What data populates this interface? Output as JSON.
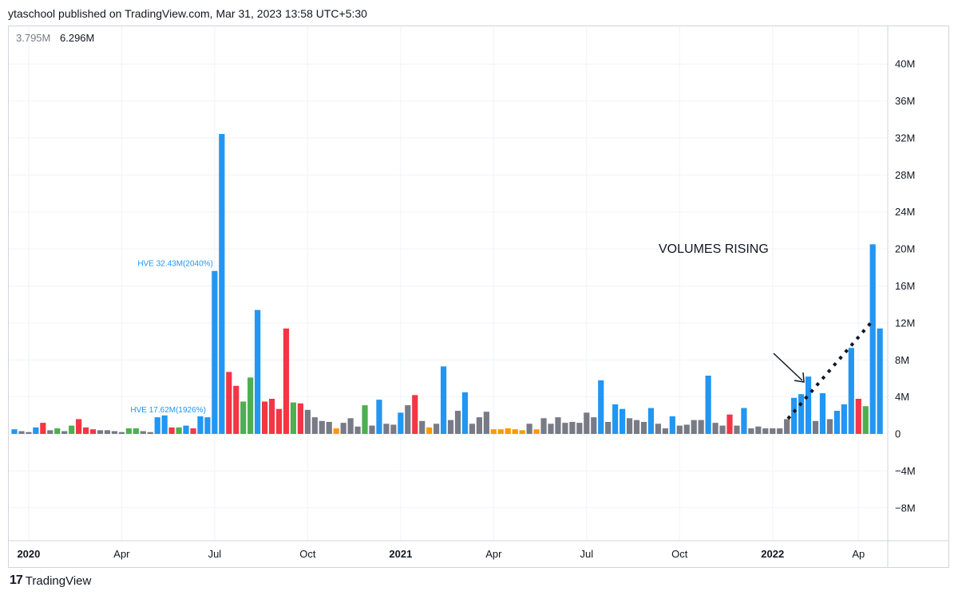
{
  "header": {
    "title": "ytaschool published on TradingView.com, Mar 31, 2023 13:58 UTC+5:30"
  },
  "legend": {
    "value_1": "3.795M",
    "value_2": "6.296M"
  },
  "annotation": {
    "text": "VOLUMES RISING"
  },
  "footer": {
    "brand": "TradingView",
    "logo": "17"
  },
  "colors": {
    "up_volume": "#2196f3",
    "neutral": "#787b86",
    "down": "#f23645",
    "green": "#4caf50",
    "orange": "#ff9800",
    "grid": "#f0f3fa"
  },
  "chart_data": {
    "type": "bar",
    "ylabel": "",
    "ylim": [
      -10,
      42
    ],
    "y_ticks": [
      40,
      36,
      32,
      28,
      24,
      20,
      16,
      12,
      8,
      4,
      0,
      -4,
      -8
    ],
    "y_tick_labels": [
      "40M",
      "36M",
      "32M",
      "28M",
      "24M",
      "20M",
      "16M",
      "12M",
      "8M",
      "4M",
      "0",
      "−4M",
      "−8M"
    ],
    "x_tick_labels": [
      {
        "label": "2020",
        "index": 2,
        "bold": true
      },
      {
        "label": "Apr",
        "index": 15,
        "bold": false
      },
      {
        "label": "Jul",
        "index": 28,
        "bold": false
      },
      {
        "label": "Oct",
        "index": 41,
        "bold": false
      },
      {
        "label": "2021",
        "index": 54,
        "bold": true
      },
      {
        "label": "Apr",
        "index": 67,
        "bold": false
      },
      {
        "label": "Jul",
        "index": 80,
        "bold": false
      },
      {
        "label": "Oct",
        "index": 93,
        "bold": false
      },
      {
        "label": "2022",
        "index": 106,
        "bold": true
      },
      {
        "label": "Ap",
        "index": 118,
        "bold": false
      }
    ],
    "bar_labels": [
      {
        "index": 28,
        "text": "HVE 32.43M(2040%)"
      },
      {
        "index": 27,
        "text": "HVE 17.62M(1926%)"
      }
    ],
    "values": [
      0.5,
      0.3,
      0.2,
      0.7,
      1.2,
      0.4,
      0.6,
      0.3,
      0.9,
      1.6,
      0.7,
      0.5,
      0.4,
      0.4,
      0.3,
      0.2,
      0.6,
      0.6,
      0.3,
      0.2,
      1.8,
      2.0,
      0.7,
      0.7,
      0.9,
      0.6,
      1.9,
      1.8,
      17.62,
      32.43,
      6.7,
      5.2,
      3.5,
      6.1,
      13.4,
      3.5,
      3.8,
      2.7,
      11.4,
      3.4,
      3.3,
      2.6,
      1.8,
      1.4,
      1.3,
      0.6,
      1.2,
      1.7,
      0.8,
      3.1,
      0.9,
      3.7,
      1.1,
      1.0,
      2.3,
      3.1,
      4.2,
      1.4,
      0.7,
      1.1,
      7.3,
      1.5,
      2.5,
      4.5,
      1.1,
      1.8,
      2.4,
      0.5,
      0.5,
      0.6,
      0.5,
      0.4,
      1.1,
      0.5,
      1.7,
      1.1,
      1.8,
      1.2,
      1.3,
      1.2,
      2.3,
      1.8,
      5.8,
      1.3,
      3.2,
      2.7,
      1.7,
      1.5,
      1.3,
      2.8,
      1.1,
      0.6,
      1.9,
      0.9,
      1.0,
      1.5,
      1.5,
      6.3,
      1.2,
      0.9,
      2.1,
      0.9,
      2.8,
      0.6,
      0.8,
      0.6,
      0.6,
      0.6,
      1.6,
      3.9,
      4.3,
      6.2,
      1.4,
      4.4,
      1.6,
      2.5,
      3.2,
      9.3,
      3.8,
      3.0,
      20.5,
      11.4
    ],
    "bar_colors": [
      "b",
      "n",
      "n",
      "b",
      "r",
      "n",
      "g",
      "n",
      "g",
      "r",
      "r",
      "r",
      "n",
      "n",
      "n",
      "n",
      "g",
      "g",
      "n",
      "n",
      "b",
      "b",
      "r",
      "g",
      "b",
      "r",
      "b",
      "b",
      "b",
      "b",
      "r",
      "r",
      "g",
      "g",
      "b",
      "r",
      "r",
      "r",
      "r",
      "g",
      "r",
      "n",
      "n",
      "n",
      "n",
      "o",
      "n",
      "n",
      "n",
      "g",
      "n",
      "b",
      "n",
      "n",
      "b",
      "n",
      "r",
      "n",
      "o",
      "n",
      "b",
      "n",
      "n",
      "b",
      "n",
      "n",
      "n",
      "o",
      "o",
      "o",
      "o",
      "o",
      "n",
      "o",
      "n",
      "n",
      "n",
      "n",
      "n",
      "n",
      "n",
      "n",
      "b",
      "n",
      "b",
      "b",
      "n",
      "n",
      "n",
      "b",
      "n",
      "n",
      "b",
      "n",
      "n",
      "n",
      "n",
      "b",
      "n",
      "n",
      "r",
      "n",
      "b",
      "n",
      "n",
      "n",
      "n",
      "n",
      "n",
      "b",
      "b",
      "b",
      "n",
      "b",
      "n",
      "b",
      "b",
      "b",
      "r",
      "g",
      "b",
      "b"
    ]
  }
}
